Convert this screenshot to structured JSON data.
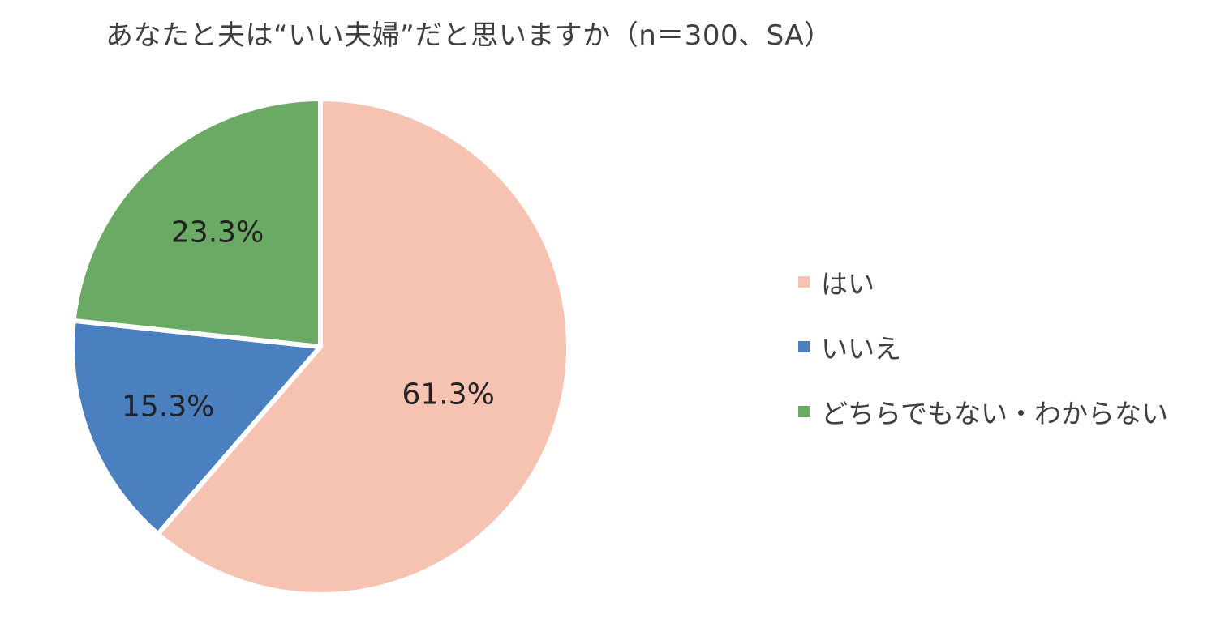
{
  "chart_data": {
    "type": "pie",
    "title": "あなたと夫は“いい夫婦”だと思いますか（n＝300、SA）",
    "categories": [
      "はい",
      "いいえ",
      "どちらでもない・わからない"
    ],
    "values": [
      61.3,
      15.3,
      23.3
    ],
    "value_labels": [
      "61.3%",
      "15.3%",
      "23.3%"
    ],
    "colors": [
      "#f6c2b2",
      "#4a80bf",
      "#6aaa64"
    ],
    "legend_position": "right",
    "start_angle": "12 o'clock",
    "direction": "clockwise"
  }
}
